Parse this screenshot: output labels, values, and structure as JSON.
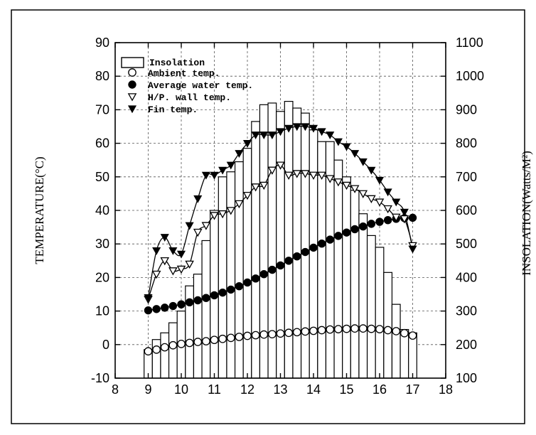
{
  "chart_data": {
    "type": "bar",
    "title": "",
    "xlabel": "",
    "ylabel": "TEMPERATURE(°C)",
    "ylabel_right": "INSOLATION(Watts/M²)",
    "xlim": [
      8,
      18
    ],
    "ylim": [
      -10,
      90
    ],
    "ylim_right": [
      100,
      1100
    ],
    "x_ticks": [
      "8",
      "9",
      "10",
      "11",
      "12",
      "13",
      "14",
      "15",
      "16",
      "17",
      "18"
    ],
    "y_ticks": [
      "-10",
      "0",
      "10",
      "20",
      "30",
      "40",
      "50",
      "60",
      "70",
      "80",
      "90"
    ],
    "y_right_ticks": [
      "100",
      "200",
      "300",
      "400",
      "500",
      "600",
      "700",
      "800",
      "900",
      "1000",
      "1100"
    ],
    "grid": true,
    "legend_position": "top-left",
    "bars": {
      "name": "Insolation",
      "axis": "right",
      "x": [
        9.0,
        9.25,
        9.5,
        9.75,
        10.0,
        10.25,
        10.5,
        10.75,
        11.0,
        11.25,
        11.5,
        11.75,
        12.0,
        12.25,
        12.5,
        12.75,
        13.0,
        13.25,
        13.5,
        13.75,
        14.0,
        14.25,
        14.5,
        14.75,
        15.0,
        15.25,
        15.5,
        15.75,
        16.0,
        16.25,
        16.5,
        16.75,
        17.0
      ],
      "values": [
        185,
        215,
        235,
        265,
        300,
        375,
        410,
        510,
        600,
        700,
        715,
        745,
        785,
        865,
        915,
        920,
        895,
        925,
        905,
        890,
        840,
        805,
        805,
        750,
        700,
        660,
        590,
        525,
        490,
        415,
        320,
        245,
        235
      ]
    },
    "series": [
      {
        "name": "Ambient temp.",
        "marker": "open-circle",
        "x": [
          9.0,
          9.25,
          9.5,
          9.75,
          10.0,
          10.25,
          10.5,
          10.75,
          11.0,
          11.25,
          11.5,
          11.75,
          12.0,
          12.25,
          12.5,
          12.75,
          13.0,
          13.25,
          13.5,
          13.75,
          14.0,
          14.25,
          14.5,
          14.75,
          15.0,
          15.25,
          15.5,
          15.75,
          16.0,
          16.25,
          16.5,
          16.75,
          17.0
        ],
        "values": [
          -2,
          -1.5,
          -0.8,
          -0.2,
          0.2,
          0.5,
          0.8,
          1.0,
          1.4,
          1.7,
          2.0,
          2.3,
          2.6,
          2.8,
          3.0,
          3.1,
          3.3,
          3.5,
          3.7,
          3.9,
          4.1,
          4.3,
          4.5,
          4.6,
          4.7,
          4.8,
          4.8,
          4.7,
          4.6,
          4.3,
          4.0,
          3.4,
          2.7
        ]
      },
      {
        "name": "Average water temp.",
        "marker": "filled-circle",
        "x": [
          9.0,
          9.25,
          9.5,
          9.75,
          10.0,
          10.25,
          10.5,
          10.75,
          11.0,
          11.25,
          11.5,
          11.75,
          12.0,
          12.25,
          12.5,
          12.75,
          13.0,
          13.25,
          13.5,
          13.75,
          14.0,
          14.25,
          14.5,
          14.75,
          15.0,
          15.25,
          15.5,
          15.75,
          16.0,
          16.25,
          16.5,
          16.75,
          17.0
        ],
        "values": [
          10.2,
          10.6,
          11.0,
          11.5,
          12.0,
          12.6,
          13.2,
          13.9,
          14.7,
          15.5,
          16.4,
          17.4,
          18.5,
          19.7,
          21.0,
          22.3,
          23.6,
          25.0,
          26.3,
          27.6,
          28.9,
          30.1,
          31.3,
          32.4,
          33.4,
          34.4,
          35.2,
          36.0,
          36.6,
          37.1,
          37.5,
          37.7,
          37.8
        ]
      },
      {
        "name": "H/P. wall temp.",
        "marker": "open-triangle",
        "x": [
          9.0,
          9.25,
          9.5,
          9.75,
          10.0,
          10.25,
          10.5,
          10.75,
          11.0,
          11.25,
          11.5,
          11.75,
          12.0,
          12.25,
          12.5,
          12.75,
          13.0,
          13.25,
          13.5,
          13.75,
          14.0,
          14.25,
          14.5,
          14.75,
          15.0,
          15.25,
          15.5,
          15.75,
          16.0,
          16.25,
          16.5,
          16.75,
          17.0
        ],
        "values": [
          13.5,
          21,
          25,
          22,
          22.5,
          24,
          33.5,
          35.5,
          38.5,
          39,
          40,
          42,
          44.5,
          47,
          47.5,
          52,
          53.5,
          50.5,
          51,
          51,
          50.5,
          50.5,
          49.5,
          48.5,
          47.5,
          46.5,
          45,
          43.5,
          42.5,
          40.5,
          38,
          37.5,
          29.5
        ]
      },
      {
        "name": "Fin temp.",
        "marker": "filled-triangle",
        "x": [
          9.0,
          9.25,
          9.5,
          9.75,
          10.0,
          10.25,
          10.5,
          10.75,
          11.0,
          11.25,
          11.5,
          11.75,
          12.0,
          12.25,
          12.5,
          12.75,
          13.0,
          13.25,
          13.5,
          13.75,
          14.0,
          14.25,
          14.5,
          14.75,
          15.0,
          15.25,
          15.5,
          15.75,
          16.0,
          16.25,
          16.5,
          16.75,
          17.0
        ],
        "values": [
          14,
          28,
          32,
          28,
          27,
          35.5,
          43.5,
          50.5,
          50.5,
          52,
          53.5,
          57,
          60,
          62.5,
          62.5,
          62.5,
          63.5,
          64.5,
          65,
          65,
          64.5,
          63.5,
          62.5,
          60.5,
          59,
          57,
          54.5,
          52,
          49,
          45.5,
          42.5,
          39.5,
          28.5
        ]
      }
    ]
  }
}
